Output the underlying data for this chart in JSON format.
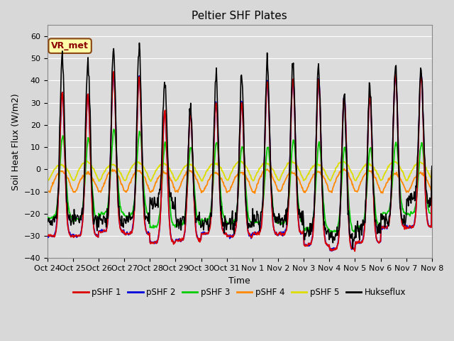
{
  "title": "Peltier SHF Plates",
  "xlabel": "Time",
  "ylabel": "Soil Heat Flux (W/m2)",
  "ylim": [
    -40,
    65
  ],
  "n_days": 15,
  "xtick_labels": [
    "Oct 24",
    "Oct 25",
    "Oct 26",
    "Oct 27",
    "Oct 28",
    "Oct 29",
    "Oct 30",
    "Oct 31",
    "Nov 1",
    "Nov 2",
    "Nov 3",
    "Nov 4",
    "Nov 5",
    "Nov 6",
    "Nov 7",
    "Nov 8"
  ],
  "series_colors": {
    "pSHF 1": "#dd0000",
    "pSHF 2": "#0000dd",
    "pSHF 3": "#00cc00",
    "pSHF 4": "#ff8800",
    "pSHF 5": "#dddd00",
    "Hukseflux": "#000000"
  },
  "annotation_text": "VR_met",
  "bg_color": "#dcdcdc",
  "grid_color": "#ffffff",
  "title_fontsize": 11,
  "label_fontsize": 9,
  "tick_fontsize": 8,
  "legend_fontsize": 8.5
}
